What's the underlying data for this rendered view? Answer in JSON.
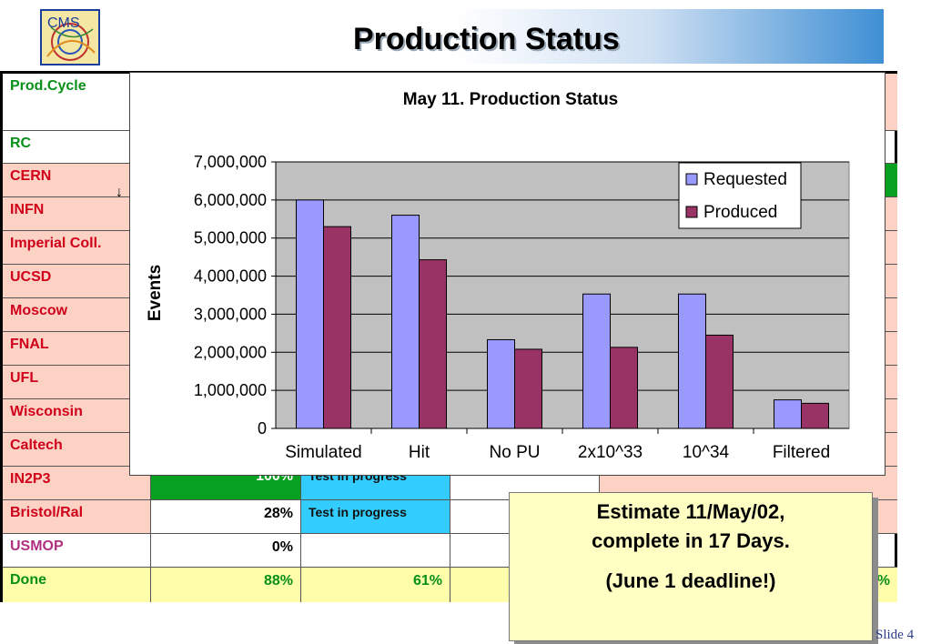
{
  "header": {
    "title": "Production Status"
  },
  "logo": {
    "text": "CMS"
  },
  "table": {
    "header_label": "Prod.Cycle",
    "rows": [
      {
        "site": "RC",
        "pct": "",
        "note": ""
      },
      {
        "site": "CERN",
        "pct": "",
        "note": ""
      },
      {
        "site": "INFN",
        "pct": "",
        "note": ""
      },
      {
        "site": "Imperial Coll.",
        "pct": "",
        "note": ""
      },
      {
        "site": "UCSD",
        "pct": "",
        "note": ""
      },
      {
        "site": "Moscow",
        "pct": "",
        "note": ""
      },
      {
        "site": "FNAL",
        "pct": "",
        "note": ""
      },
      {
        "site": "UFL",
        "pct": "",
        "note": ""
      },
      {
        "site": "Wisconsin",
        "pct": "",
        "note": ""
      },
      {
        "site": "Caltech",
        "pct": "",
        "note": ""
      },
      {
        "site": "IN2P3",
        "pct": "100%",
        "note": "Test in progress"
      },
      {
        "site": "Bristol/Ral",
        "pct": "28%",
        "note": "Test in progress"
      },
      {
        "site": "USMOP",
        "pct": "0%",
        "note": ""
      },
      {
        "site": "Done",
        "pct": "88%",
        "note": "61%",
        "edge_pct": "%"
      }
    ]
  },
  "chart_data": {
    "type": "bar",
    "title": "May 11. Production Status",
    "xlabel": "",
    "ylabel": "Events",
    "categories": [
      "Simulated",
      "Hit",
      "No PU",
      "2x10^33",
      "10^34",
      "Filtered"
    ],
    "series": [
      {
        "name": "Requested",
        "values": [
          6000000,
          5600000,
          2330000,
          3530000,
          3530000,
          750000
        ],
        "color": "#9999ff"
      },
      {
        "name": "Produced",
        "values": [
          5300000,
          4430000,
          2080000,
          2130000,
          2450000,
          660000
        ],
        "color": "#993366"
      }
    ],
    "ylim": [
      0,
      7000000
    ],
    "yticks": [
      0,
      1000000,
      2000000,
      3000000,
      4000000,
      5000000,
      6000000,
      7000000
    ],
    "ytick_labels": [
      "0",
      "1,000,000",
      "2,000,000",
      "3,000,000",
      "4,000,000",
      "5,000,000",
      "6,000,000",
      "7,000,000"
    ],
    "grid": true,
    "legend": "top-right",
    "plot_background": "#c0c0c0"
  },
  "callout": {
    "line1": "Estimate 11/May/02,",
    "line2": "complete in 17 Days.",
    "line3": "(June 1 deadline!)"
  },
  "footer": {
    "slide": "Slide 4"
  }
}
